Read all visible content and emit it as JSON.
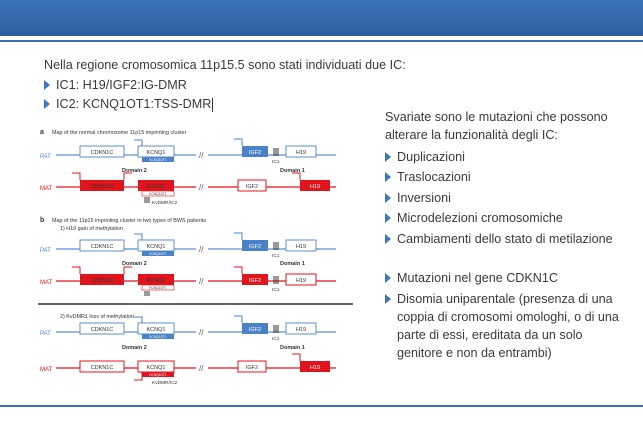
{
  "header": {
    "bar_color": "#3567a8"
  },
  "intro": "Nella regione cromosomica 11p15.5 sono stati individuati due IC:",
  "ic_list": [
    "IC1: H19/IGF2:IG-DMR",
    "IC2: KCNQ1OT1:TSS-DMR"
  ],
  "right": {
    "title": "Svariate sono le mutazioni che possono alterare la funzionalità degli IC:",
    "items": [
      "Duplicazioni",
      "Traslocazioni",
      "Inversioni",
      "Microdelezioni cromosomiche",
      "Cambiamenti dello stato di metilazione",
      "Mutazioni nel gene CDKN1C",
      "Disomia uniparentale (presenza di una coppia di cromosomi omologhi, o di una parte di essi, ereditata da un solo genitore e non da entrambi)"
    ]
  },
  "figure": {
    "colors": {
      "pat": "#5b8fd0",
      "mat": "#e0141c",
      "imprint": "#4a82c8"
    },
    "panel_a_label": "a",
    "panel_a_title": "Map of the normal chromosome 11p15 imprinting cluster",
    "panel_b_label": "b",
    "panel_b_title": "Map of the 11p15 imprinting cluster in two types of BWS patients",
    "sub1": "1)  H19 gain of methylation",
    "sub2": "2)  KvDMR1 loss of methylation",
    "pat": "PAT",
    "mat": "MAT",
    "cdkn1c": "CDKN1C",
    "kcnq1": "KCNQ1",
    "igf2": "IGF2",
    "h19": "H19",
    "kcnq1ot1": "KCNQ1OT1",
    "ic1": "IC1",
    "domain1": "Domain 1",
    "domain2": "Domain 2",
    "kvdmr": "KvDMR/IC2"
  }
}
